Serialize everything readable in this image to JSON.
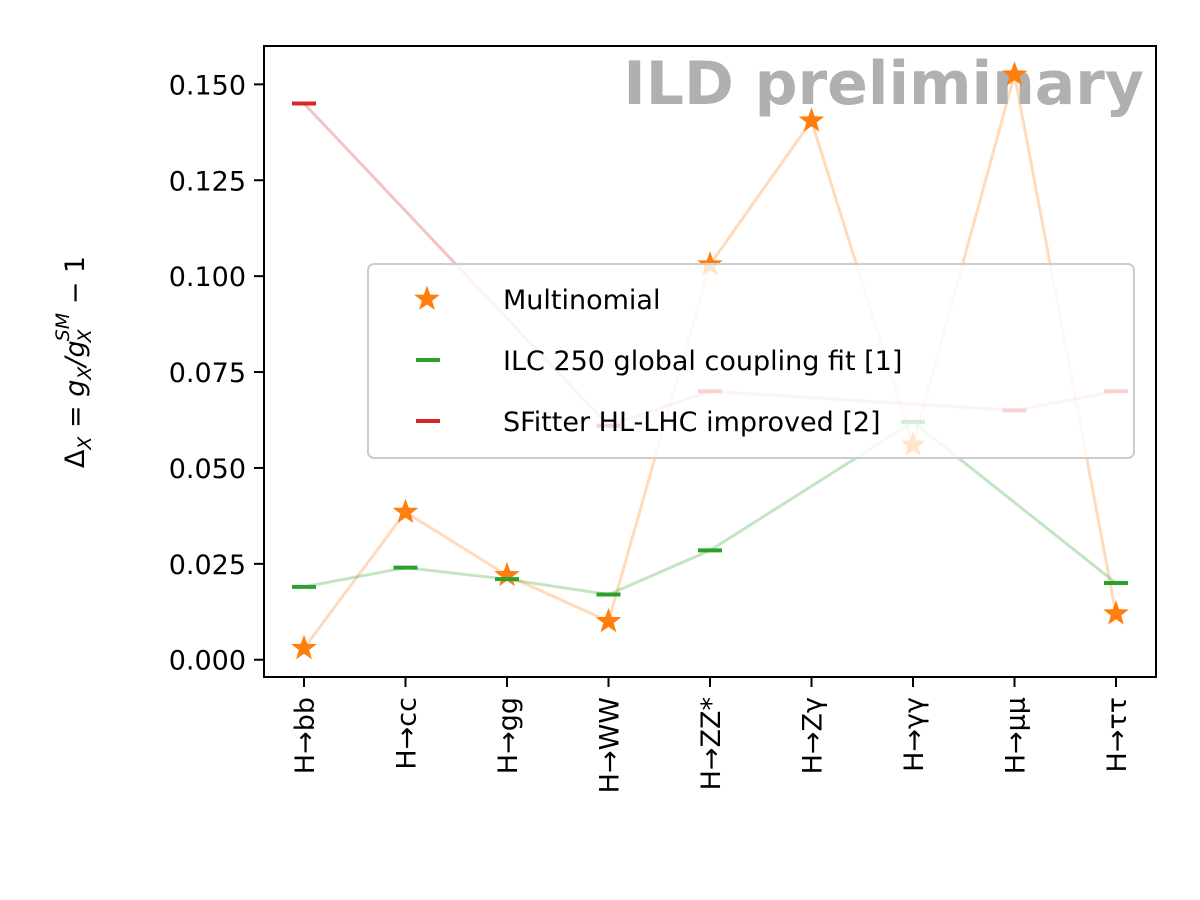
{
  "chart_data": {
    "type": "scatter",
    "title": "",
    "xlabel": "",
    "ylabel_parts": {
      "delta": "Δ",
      "sub_x": "X",
      "eq": " = g",
      "slash": "/g",
      "sup_sm": "SM",
      "minus_one": " − 1"
    },
    "watermark": "ILD preliminary",
    "categories": [
      "H→bb",
      "H→cc",
      "H→gg",
      "H→WW",
      "H→ZZ*",
      "H→Zγ",
      "H→γγ",
      "H→μμ",
      "H→ττ"
    ],
    "ylim": [
      -0.0045,
      0.16
    ],
    "yticks": [
      0.0,
      0.025,
      0.05,
      0.075,
      0.1,
      0.125,
      0.15
    ],
    "ytick_labels": [
      "0.000",
      "0.025",
      "0.050",
      "0.075",
      "0.100",
      "0.125",
      "0.150"
    ],
    "legend_position": "center-right",
    "series": [
      {
        "name": "Multinomial",
        "marker": "star",
        "color": "#ff7f0e",
        "values": [
          0.003,
          0.0385,
          0.022,
          0.01,
          0.103,
          0.1405,
          0.056,
          0.1525,
          0.012
        ]
      },
      {
        "name": "ILC 250 global coupling fit [1]",
        "marker": "hline",
        "color": "#2ca02c",
        "values": [
          0.019,
          0.024,
          0.021,
          0.017,
          0.0285,
          null,
          0.062,
          null,
          0.02
        ]
      },
      {
        "name": "SFitter HL-LHC improved [2]",
        "marker": "hline",
        "color": "#d62728",
        "values": [
          0.145,
          null,
          null,
          0.061,
          0.07,
          null,
          null,
          0.065,
          0.07
        ]
      }
    ]
  }
}
